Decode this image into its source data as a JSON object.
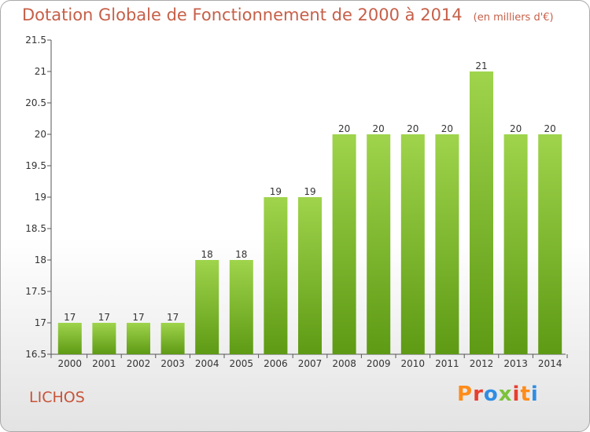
{
  "header": {
    "title": "Dotation Globale de Fonctionnement de 2000 à 2014",
    "subtitle": "(en milliers d'€)"
  },
  "commune": "LICHOS",
  "logo": {
    "text": "Proxiti",
    "colors": [
      "#ff8c1a",
      "#e83e2e",
      "#2f8de4",
      "#7cc23a",
      "#e83e2e",
      "#ff8c1a",
      "#2f8de4"
    ]
  },
  "chart_data": {
    "type": "bar",
    "categories": [
      "2000",
      "2001",
      "2002",
      "2003",
      "2004",
      "2005",
      "2006",
      "2007",
      "2008",
      "2009",
      "2010",
      "2011",
      "2012",
      "2013",
      "2014"
    ],
    "values": [
      17,
      17,
      17,
      17,
      18,
      18,
      19,
      19,
      20,
      20,
      20,
      20,
      21,
      20,
      20
    ],
    "data_labels": [
      "17",
      "17",
      "17",
      "17",
      "18",
      "18",
      "19",
      "19",
      "20",
      "20",
      "20",
      "20",
      "21",
      "20",
      "20"
    ],
    "ylim": [
      16.5,
      21.5
    ],
    "yticks": [
      "16.5",
      "17",
      "17.5",
      "18",
      "18.5",
      "19",
      "19.5",
      "20",
      "20.5",
      "21",
      "21.5"
    ],
    "grid": false,
    "bar_color_top": "#9fd44c",
    "bar_color_bottom": "#5e9a14"
  }
}
